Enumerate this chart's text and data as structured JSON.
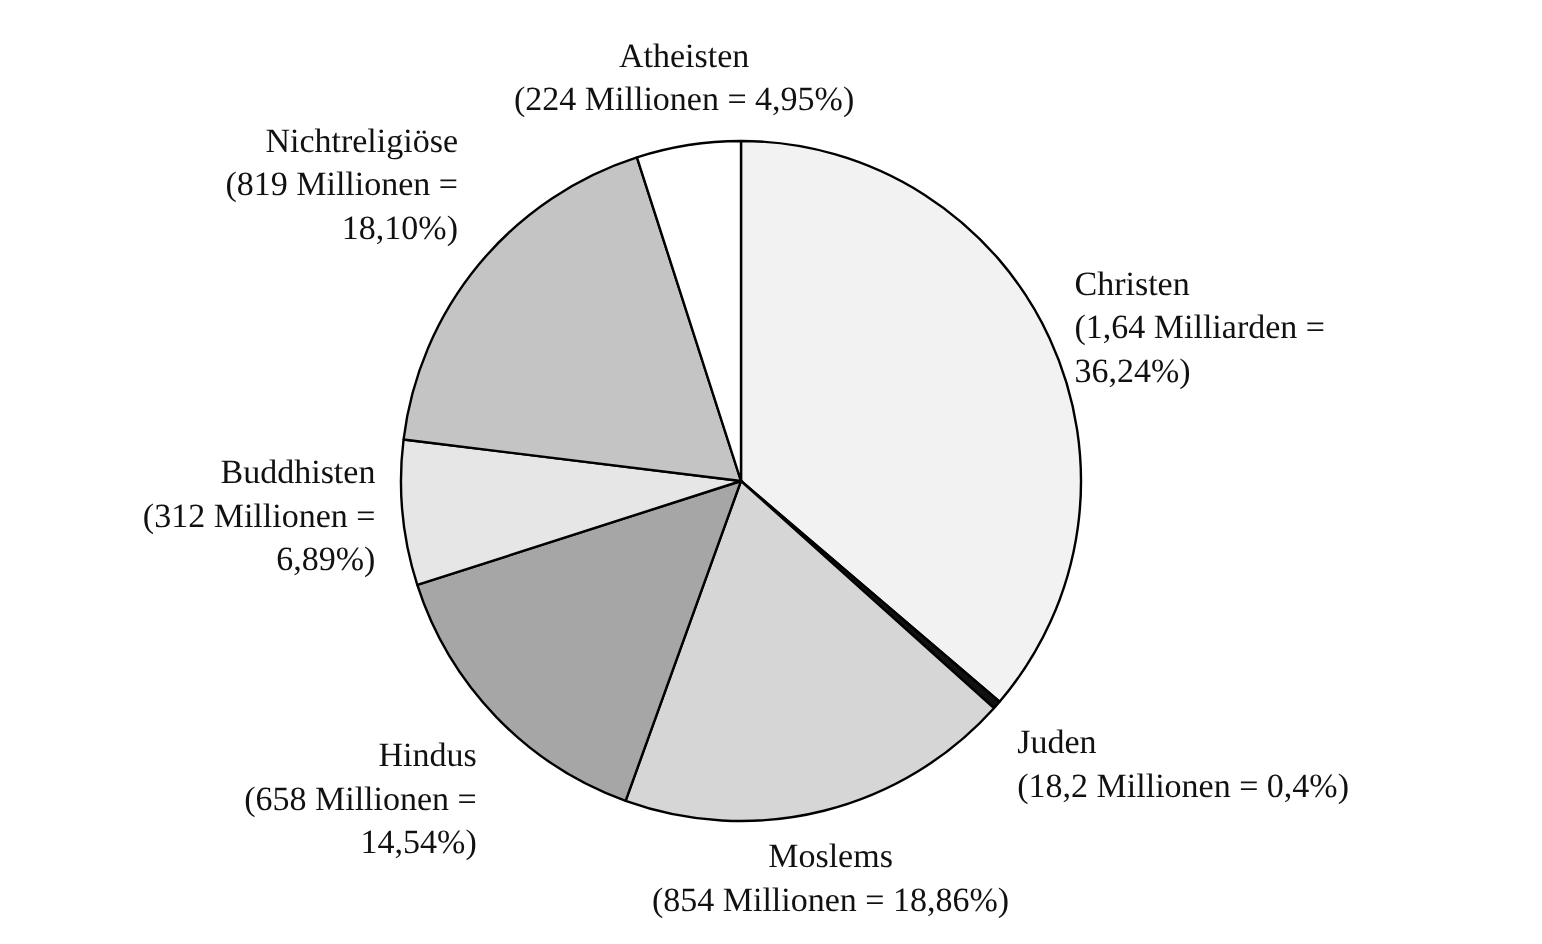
{
  "chart_data": {
    "type": "pie",
    "categories": [
      "Christen",
      "Juden",
      "Moslems",
      "Hindus",
      "Buddhisten",
      "Nichtreligiöse",
      "Atheisten"
    ],
    "values": [
      36.24,
      0.4,
      18.86,
      14.54,
      6.89,
      18.1,
      4.95
    ],
    "value_labels": [
      "(1,64 Milliarden =\n36,24%)",
      "(18,2 Millionen = 0,4%)",
      "(854 Millionen = 18,86%)",
      "(658 Millionen =\n14,54%)",
      "(312 Millionen =\n6,89%)",
      "(819 Millionen =\n18,10%)",
      "(224 Millionen = 4,95%)"
    ],
    "colors": [
      "#f2f2f2",
      "#111111",
      "#d6d6d6",
      "#a6a6a6",
      "#e6e6e6",
      "#c4c4c4",
      "#ffffff"
    ],
    "legend": false
  }
}
